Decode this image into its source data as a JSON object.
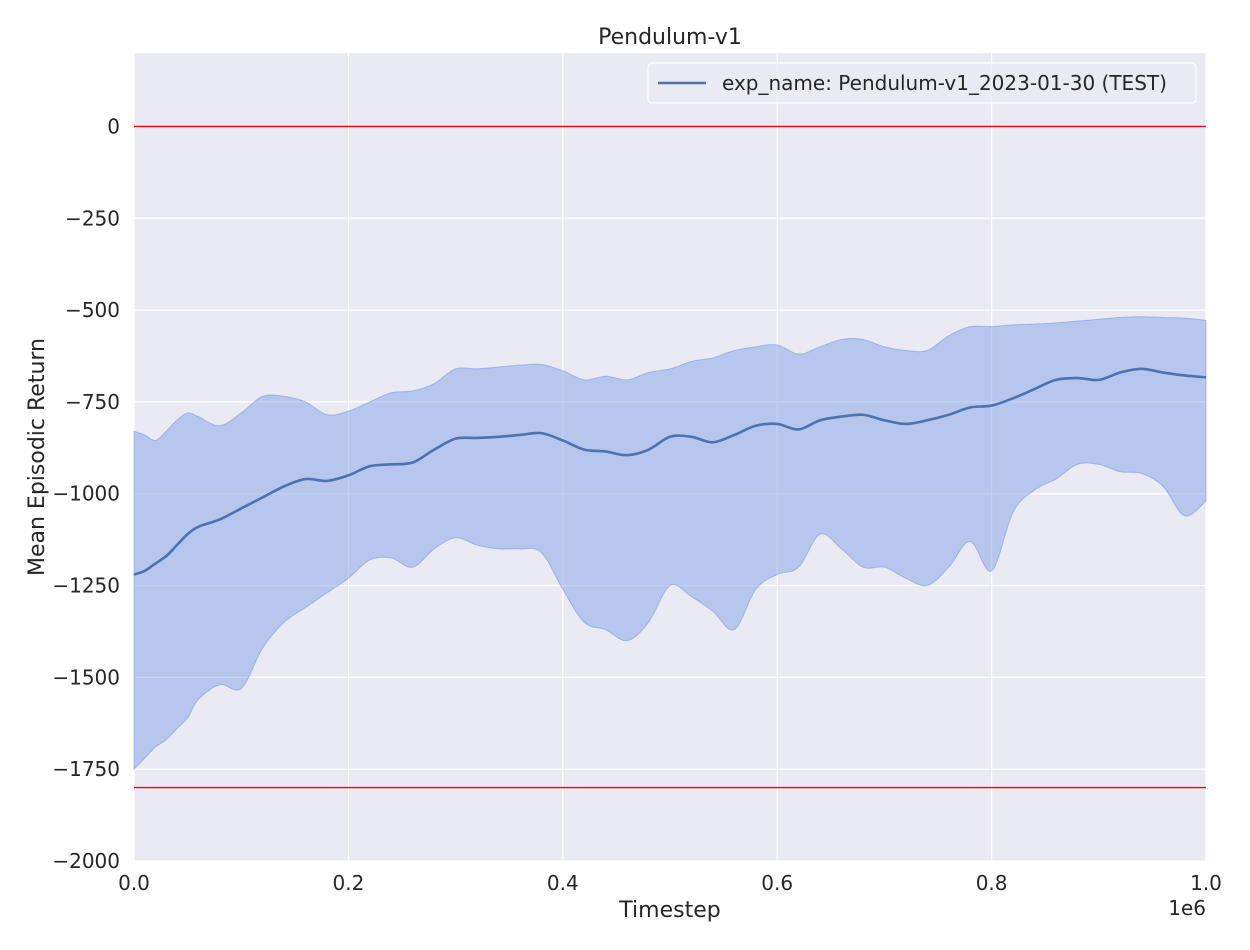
{
  "chart_data": {
    "type": "line",
    "title": "Pendulum-v1",
    "xlabel": "Timestep",
    "ylabel": "Mean Episodic Return",
    "x_offset_label": "1e6",
    "xlim": [
      0,
      1.0
    ],
    "ylim": [
      -2000,
      200
    ],
    "x_ticks": [
      0.0,
      0.2,
      0.4,
      0.6,
      0.8,
      1.0
    ],
    "x_tick_labels": [
      "0.0",
      "0.2",
      "0.4",
      "0.6",
      "0.8",
      "1.0"
    ],
    "y_ticks": [
      0,
      -250,
      -500,
      -750,
      -1000,
      -1250,
      -1500,
      -1750,
      -2000
    ],
    "y_tick_labels": [
      "0",
      "−250",
      "−500",
      "−750",
      "−1000",
      "−1250",
      "−1500",
      "−1750",
      "−2000"
    ],
    "grid": true,
    "legend_position": "top-right",
    "reference_lines": [
      {
        "y": 0,
        "color": "#ff0000"
      },
      {
        "y": -1800,
        "color": "#ff0000"
      }
    ],
    "series": [
      {
        "name": "exp_name: Pendulum-v1_2023-01-30 (TEST)",
        "color": "#4c72b0",
        "band_color": "#7b9be6",
        "x": [
          0.0,
          0.01,
          0.02,
          0.03,
          0.04,
          0.05,
          0.06,
          0.08,
          0.1,
          0.12,
          0.14,
          0.16,
          0.18,
          0.2,
          0.22,
          0.24,
          0.26,
          0.28,
          0.3,
          0.32,
          0.34,
          0.36,
          0.38,
          0.4,
          0.42,
          0.44,
          0.46,
          0.48,
          0.5,
          0.52,
          0.54,
          0.56,
          0.58,
          0.6,
          0.62,
          0.64,
          0.66,
          0.68,
          0.7,
          0.72,
          0.74,
          0.76,
          0.78,
          0.8,
          0.82,
          0.84,
          0.86,
          0.88,
          0.9,
          0.92,
          0.94,
          0.96,
          0.98,
          1.0
        ],
        "mean": [
          -1220,
          -1210,
          -1190,
          -1170,
          -1140,
          -1110,
          -1090,
          -1070,
          -1040,
          -1010,
          -980,
          -960,
          -965,
          -950,
          -925,
          -920,
          -915,
          -880,
          -850,
          -848,
          -845,
          -840,
          -835,
          -855,
          -880,
          -885,
          -895,
          -880,
          -845,
          -845,
          -860,
          -840,
          -815,
          -810,
          -825,
          -800,
          -790,
          -785,
          -800,
          -810,
          -800,
          -785,
          -765,
          -760,
          -740,
          -715,
          -690,
          -685,
          -690,
          -670,
          -660,
          -670,
          -678,
          -683
        ],
        "upper": [
          -830,
          -840,
          -855,
          -830,
          -800,
          -780,
          -790,
          -815,
          -780,
          -735,
          -735,
          -750,
          -785,
          -775,
          -750,
          -725,
          -720,
          -700,
          -660,
          -660,
          -655,
          -650,
          -648,
          -665,
          -690,
          -680,
          -690,
          -670,
          -660,
          -640,
          -630,
          -610,
          -600,
          -595,
          -620,
          -600,
          -580,
          -580,
          -600,
          -610,
          -610,
          -570,
          -545,
          -545,
          -540,
          -538,
          -535,
          -530,
          -525,
          -520,
          -518,
          -520,
          -522,
          -528
        ],
        "lower": [
          -1750,
          -1720,
          -1690,
          -1670,
          -1640,
          -1610,
          -1560,
          -1520,
          -1530,
          -1420,
          -1350,
          -1310,
          -1270,
          -1230,
          -1180,
          -1175,
          -1200,
          -1150,
          -1120,
          -1140,
          -1150,
          -1150,
          -1160,
          -1260,
          -1350,
          -1370,
          -1400,
          -1350,
          -1250,
          -1280,
          -1320,
          -1370,
          -1260,
          -1220,
          -1200,
          -1110,
          -1150,
          -1200,
          -1200,
          -1230,
          -1250,
          -1200,
          -1130,
          -1210,
          -1050,
          -990,
          -960,
          -920,
          -920,
          -940,
          -945,
          -980,
          -1060,
          -1020
        ]
      }
    ]
  }
}
